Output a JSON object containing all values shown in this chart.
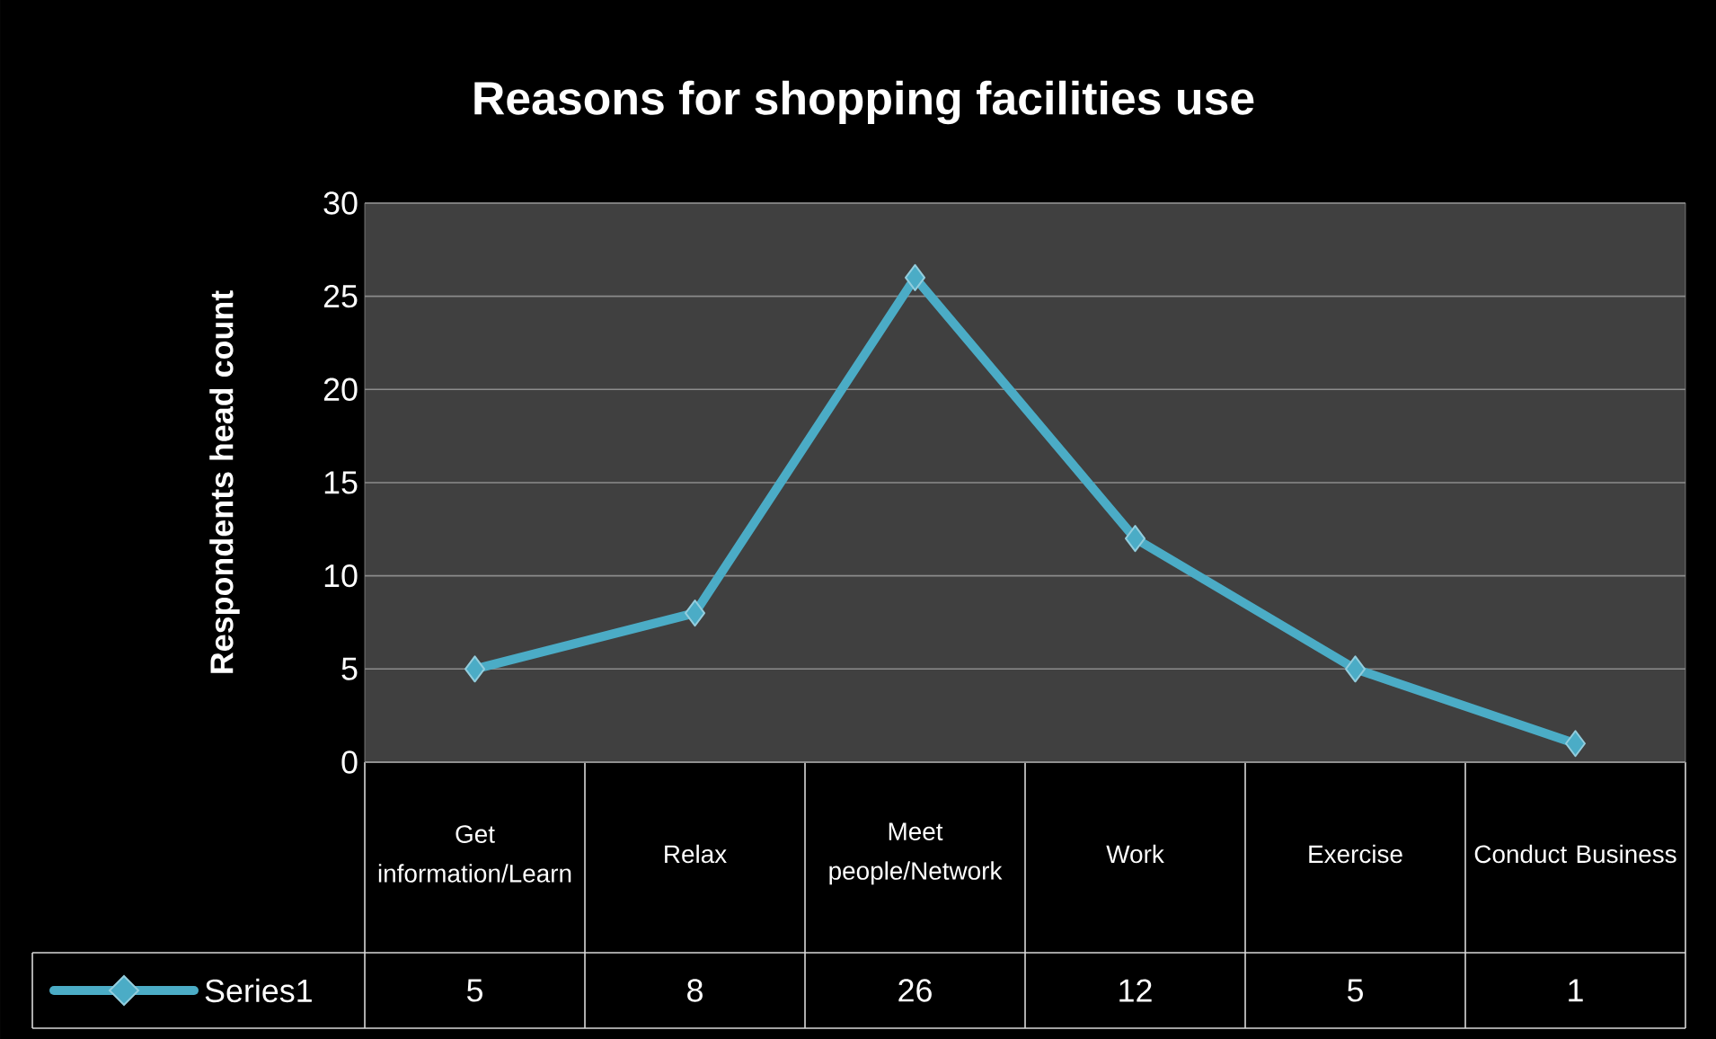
{
  "chart_data": {
    "type": "line",
    "title": "Reasons for shopping facilities use",
    "ylabel": "Respondents head count",
    "categories": [
      "Get information/Learn",
      "Relax",
      "Meet people/Network",
      "Work",
      "Exercise",
      "Conduct Business"
    ],
    "series": [
      {
        "name": "Series1",
        "color": "#4bacc6",
        "values": [
          5,
          8,
          26,
          12,
          5,
          1
        ]
      }
    ],
    "ylim": [
      0,
      30
    ],
    "yticks": [
      0,
      5,
      10,
      15,
      20,
      25,
      30
    ],
    "grid": "y",
    "marker": "diamond",
    "line_style": "solid",
    "data_labels": true,
    "legend": "bottom"
  }
}
